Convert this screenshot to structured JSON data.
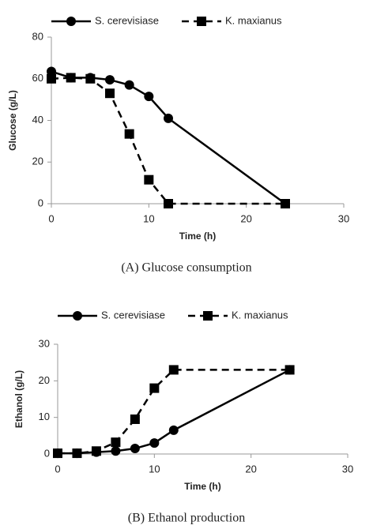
{
  "chart_data": [
    {
      "type": "line",
      "xlabel": "Time (h)",
      "ylabel": "Glucose (g/L)",
      "caption": "(A) Glucose consumption",
      "x": [
        0,
        2,
        4,
        6,
        8,
        10,
        12,
        24
      ],
      "series": [
        {
          "name": "S. cerevisiase",
          "color": "#000000",
          "linestyle": "solid",
          "marker": "circle",
          "values": [
            63.5,
            60.5,
            60.5,
            59.5,
            57,
            51.5,
            41,
            0
          ]
        },
        {
          "name": "K. maxianus",
          "color": "#000000",
          "linestyle": "dashed",
          "marker": "square",
          "values": [
            60,
            60.5,
            60,
            53,
            33.5,
            11.5,
            0,
            0
          ]
        }
      ],
      "xlim": [
        0,
        30
      ],
      "xticks": [
        0,
        10,
        20,
        30
      ],
      "ylim": [
        0,
        80
      ],
      "yticks": [
        0,
        20,
        40,
        60,
        80
      ],
      "legend": "top"
    },
    {
      "type": "line",
      "xlabel": "Time (h)",
      "ylabel": "Ethanol (g/L)",
      "caption": "(B) Ethanol production",
      "x": [
        0,
        2,
        4,
        6,
        8,
        10,
        12,
        24
      ],
      "series": [
        {
          "name": "S. cerevisiase",
          "color": "#000000",
          "linestyle": "solid",
          "marker": "circle",
          "values": [
            0.2,
            0.2,
            0.5,
            0.8,
            1.5,
            3,
            6.5,
            23
          ]
        },
        {
          "name": "K. maxianus",
          "color": "#000000",
          "linestyle": "dashed",
          "marker": "square",
          "values": [
            0.2,
            0.2,
            0.8,
            3.2,
            9.5,
            18,
            23,
            23
          ]
        }
      ],
      "xlim": [
        0,
        30
      ],
      "xticks": [
        0,
        10,
        20,
        30
      ],
      "ylim": [
        0,
        30
      ],
      "yticks": [
        0,
        10,
        20,
        30
      ],
      "legend": "top"
    }
  ]
}
